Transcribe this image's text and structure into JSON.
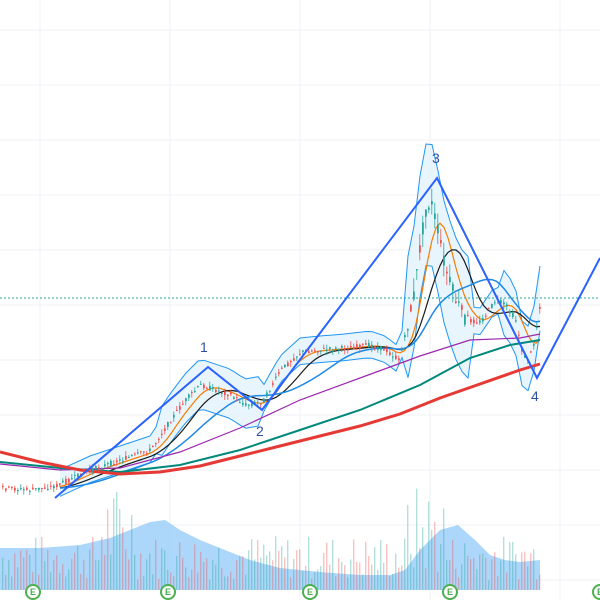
{
  "wave_labels": [
    "1",
    "2",
    "3",
    "4"
  ],
  "earnings_marker_label": "E",
  "earnings_marker_count": 5,
  "colors": {
    "background": "#ffffff",
    "grid": "#eef1f5",
    "candle_up": "#26a69a",
    "candle_down": "#ef5350",
    "wave_line": "#2962ff",
    "wave_text": "#2f4ea8",
    "bollinger_line": "#2196f3",
    "bollinger_fill": "#e3f2fd",
    "ma_fast": "#f57c00",
    "ma_black": "#1a1a1a",
    "ma_purple": "#9c27b0",
    "ma_blue": "#1e88e5",
    "ma_green": "#00897b",
    "ma_red": "#e53935",
    "volume_area": "#90caf9",
    "last_price_line": "#26a69a",
    "earnings_badge": "#4caf50"
  }
}
